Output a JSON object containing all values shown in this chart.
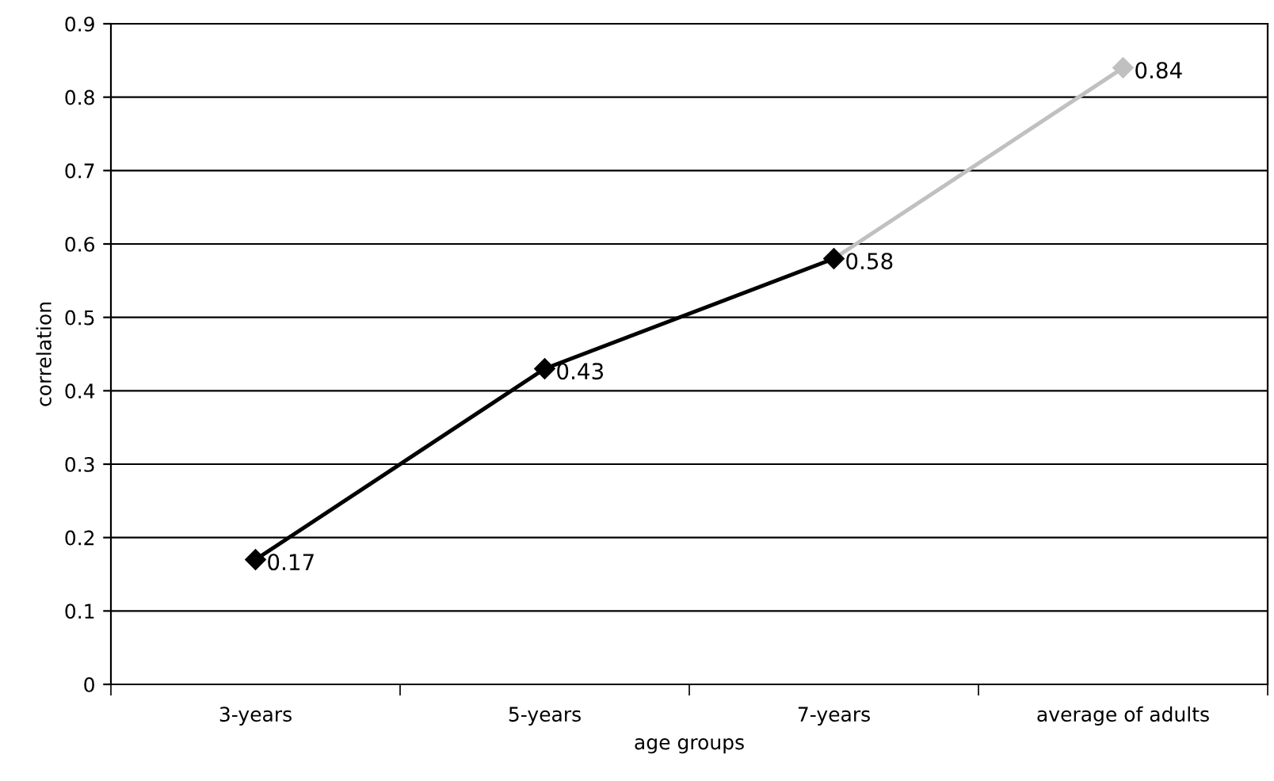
{
  "chart_data": {
    "type": "line",
    "xlabel": "age groups",
    "ylabel": "correlation",
    "categories": [
      "3-years",
      "5-years",
      "7-years",
      "average of adults"
    ],
    "series": [
      {
        "color": "#c0c0c0",
        "values": [
          null,
          null,
          0.58,
          0.84
        ],
        "value_labels": [
          null,
          null,
          null,
          "0.84"
        ]
      },
      {
        "color": "#000000",
        "values": [
          0.17,
          0.43,
          0.58,
          null
        ],
        "value_labels": [
          "0.17",
          "0.43",
          "0.58",
          null
        ]
      }
    ],
    "ylim": [
      0,
      0.9
    ],
    "yticks": [
      0,
      0.1,
      0.2,
      0.3,
      0.4,
      0.5,
      0.6,
      0.7,
      0.8,
      0.9
    ],
    "grid": "y",
    "marker": "diamond",
    "line_style": "solid"
  }
}
